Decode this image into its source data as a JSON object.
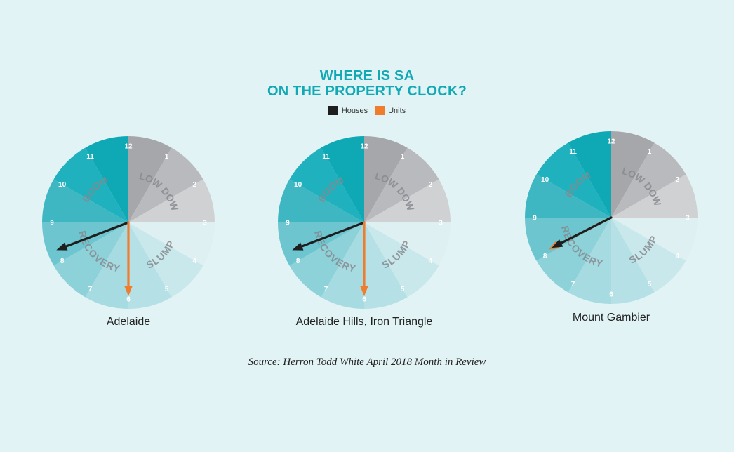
{
  "title_line1": "WHERE IS SA",
  "title_line2": "ON THE PROPERTY CLOCK?",
  "legend": [
    {
      "label": "Houses",
      "color": "#1e1e1e"
    },
    {
      "label": "Units",
      "color": "#f07c2e"
    }
  ],
  "source": "Source: Herron Todd White April 2018 Month in Review",
  "chart_data": {
    "type": "property-clock",
    "hours": [
      "12",
      "1",
      "2",
      "3",
      "4",
      "5",
      "6",
      "7",
      "8",
      "9",
      "10",
      "11"
    ],
    "phases": [
      {
        "label": "SLOW DOWN",
        "hours": [
          12,
          1,
          2
        ]
      },
      {
        "label": "SLUMP",
        "hours": [
          3,
          4,
          5
        ]
      },
      {
        "label": "RECOVERY",
        "hours": [
          6,
          7,
          8
        ]
      },
      {
        "label": "BOOM",
        "hours": [
          9,
          10,
          11
        ]
      }
    ],
    "colors": {
      "12": "#a6a7ab",
      "1": "#b9babd",
      "2": "#d0d1d3",
      "3": "#dff0f2",
      "4": "#c9e8ec",
      "5": "#b5e1e6",
      "6": "#a6dbe1",
      "7": "#8dd1d9",
      "8": "#6cc5cf",
      "9": "#3fb7c3",
      "10": "#1fb1be",
      "11": "#0fa8b5"
    },
    "clocks": [
      {
        "name": "Adelaide",
        "houses": 8.3,
        "units": 6.0
      },
      {
        "name": "Adelaide Hills, Iron Triangle",
        "houses": 8.3,
        "units": 6.0
      },
      {
        "name": "Mount Gambier",
        "houses": 8.1,
        "units": 8.1
      }
    ]
  }
}
